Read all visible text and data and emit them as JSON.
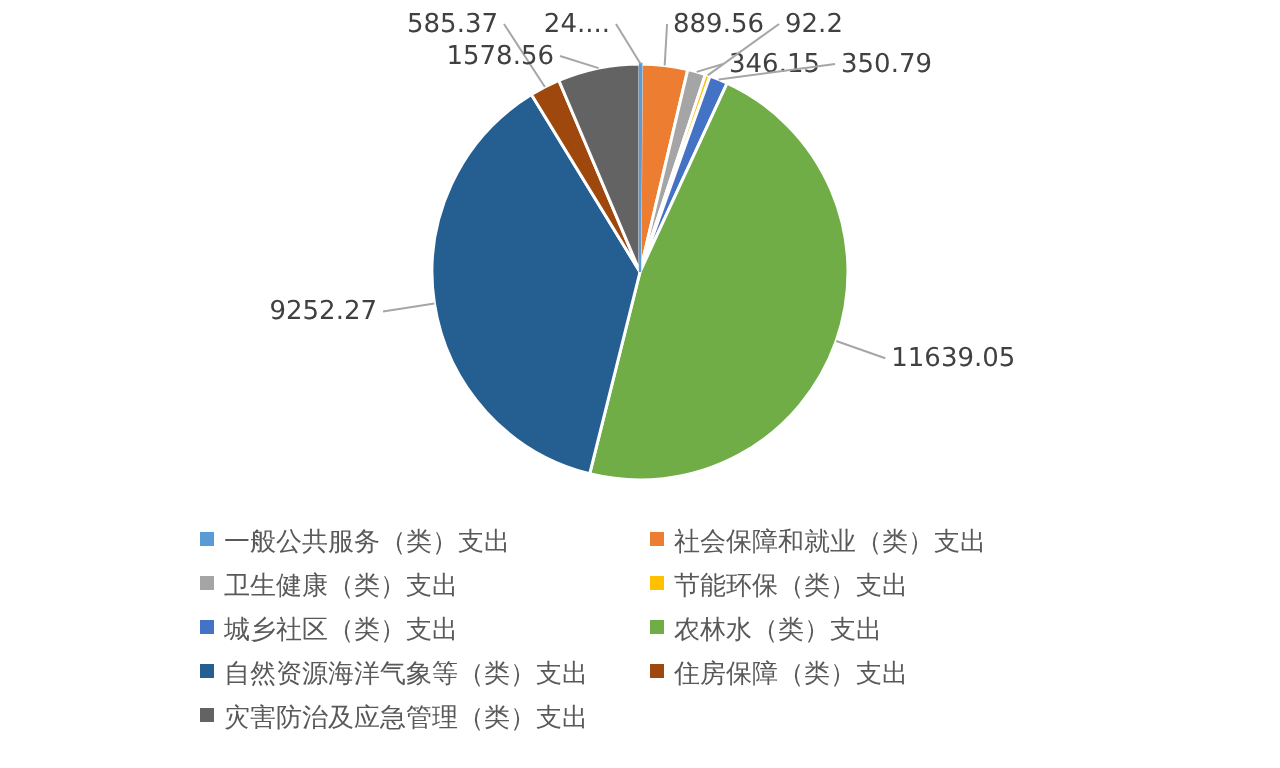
{
  "chart_data": {
    "type": "pie",
    "categories": [
      "一般公共服务（类）支出",
      "社会保障和就业（类）支出",
      "卫生健康（类）支出",
      "节能环保（类）支出",
      "城乡社区（类）支出",
      "农林水（类）支出",
      "自然资源海洋气象等（类）支出",
      "住房保障（类）支出",
      "灾害防治及应急管理（类）支出"
    ],
    "values": [
      24,
      889.56,
      346.15,
      92.2,
      350.79,
      11639.05,
      9252.27,
      585.37,
      1578.56
    ],
    "value_labels": [
      "24....",
      "889.56",
      "346.15",
      "92.2",
      "350.79",
      "11639.05",
      "9252.27",
      "585.37",
      "1578.56"
    ],
    "colors": [
      "#5b9bd5",
      "#ed7d31",
      "#a5a5a5",
      "#ffc000",
      "#4472c4",
      "#70ad47",
      "#255e91",
      "#9e480e",
      "#636363"
    ],
    "legend": "bottom"
  }
}
